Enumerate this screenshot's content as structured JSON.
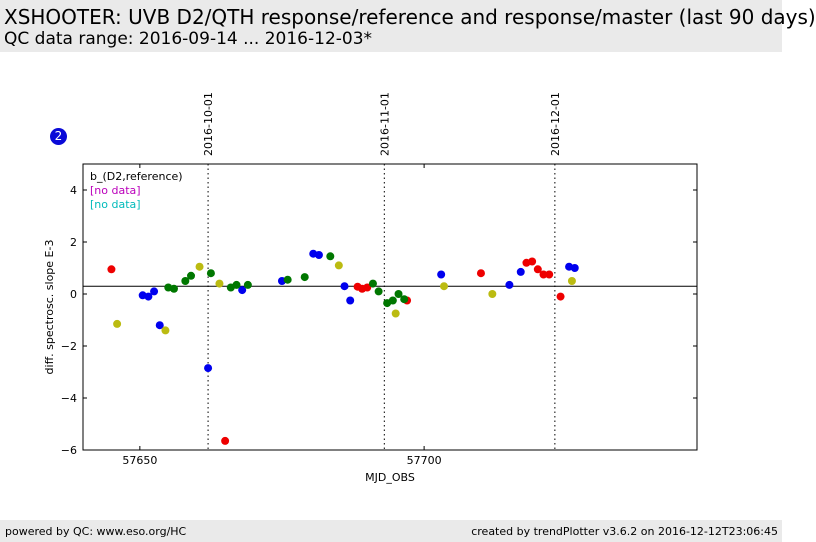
{
  "header": {
    "title": "XSHOOTER: UVB D2/QTH response/reference and response/master (last 90 days)",
    "subtitle": "QC data range: 2016-09-14 ... 2016-12-03*"
  },
  "badge": "2",
  "footer": {
    "left": "powered by QC: www.eso.org/HC",
    "right": "created by trendPlotter v3.6.2 on 2016-12-12T23:06:45"
  },
  "colors": {
    "red": "#ee0000",
    "blue": "#0000ee",
    "green": "#007700",
    "olive": "#bbbb11",
    "nodata1": "#bb00bb",
    "nodata2": "#00bbbb"
  },
  "chart_data": {
    "type": "scatter",
    "xlabel": "MJD_OBS",
    "ylabel": "diff. spectrosc. slope E-3",
    "xlim": [
      57640,
      57748
    ],
    "ylim": [
      -6,
      5
    ],
    "x_ticks": [
      57650,
      57700
    ],
    "y_ticks": [
      -6,
      -4,
      -2,
      0,
      2,
      4
    ],
    "reference_line": 0.3,
    "date_markers": [
      {
        "mjd": 57662,
        "label": "2016-10-01"
      },
      {
        "mjd": 57693,
        "label": "2016-11-01"
      },
      {
        "mjd": 57723,
        "label": "2016-12-01"
      }
    ],
    "legend": [
      "b_(D2,reference)",
      "[no data]",
      "[no data]"
    ],
    "series": [
      {
        "color": "red",
        "points": [
          [
            57645,
            0.95
          ],
          [
            57665,
            -5.65
          ],
          [
            57688.3,
            0.28
          ],
          [
            57689.1,
            0.2
          ],
          [
            57690,
            0.25
          ],
          [
            57697,
            -0.25
          ],
          [
            57710,
            0.8
          ],
          [
            57718,
            1.2
          ],
          [
            57719,
            1.25
          ],
          [
            57720,
            0.95
          ],
          [
            57721,
            0.75
          ],
          [
            57722,
            0.75
          ],
          [
            57724,
            -0.1
          ]
        ]
      },
      {
        "color": "blue",
        "points": [
          [
            57650.5,
            -0.05
          ],
          [
            57651.5,
            -0.1
          ],
          [
            57652.5,
            0.1
          ],
          [
            57653.5,
            -1.2
          ],
          [
            57662,
            -2.85
          ],
          [
            57668,
            0.15
          ],
          [
            57675,
            0.5
          ],
          [
            57680.5,
            1.55
          ],
          [
            57681.5,
            1.5
          ],
          [
            57686,
            0.3
          ],
          [
            57687,
            -0.25
          ],
          [
            57703,
            0.75
          ],
          [
            57715,
            0.35
          ],
          [
            57717,
            0.85
          ],
          [
            57725.5,
            1.05
          ],
          [
            57726.5,
            1.0
          ]
        ]
      },
      {
        "color": "green",
        "points": [
          [
            57655,
            0.25
          ],
          [
            57656,
            0.2
          ],
          [
            57658,
            0.5
          ],
          [
            57659,
            0.7
          ],
          [
            57662.5,
            0.8
          ],
          [
            57666,
            0.25
          ],
          [
            57667,
            0.35
          ],
          [
            57669,
            0.35
          ],
          [
            57676,
            0.55
          ],
          [
            57679,
            0.65
          ],
          [
            57683.5,
            1.45
          ],
          [
            57691,
            0.4
          ],
          [
            57692,
            0.1
          ],
          [
            57693.5,
            -0.35
          ],
          [
            57694.5,
            -0.25
          ],
          [
            57695.5,
            0.0
          ],
          [
            57696.5,
            -0.2
          ]
        ]
      },
      {
        "color": "olive",
        "points": [
          [
            57646,
            -1.15
          ],
          [
            57654.5,
            -1.4
          ],
          [
            57660.5,
            1.05
          ],
          [
            57664,
            0.4
          ],
          [
            57685,
            1.1
          ],
          [
            57695,
            -0.75
          ],
          [
            57703.5,
            0.3
          ],
          [
            57712,
            0.0
          ],
          [
            57726,
            0.5
          ]
        ]
      }
    ]
  }
}
